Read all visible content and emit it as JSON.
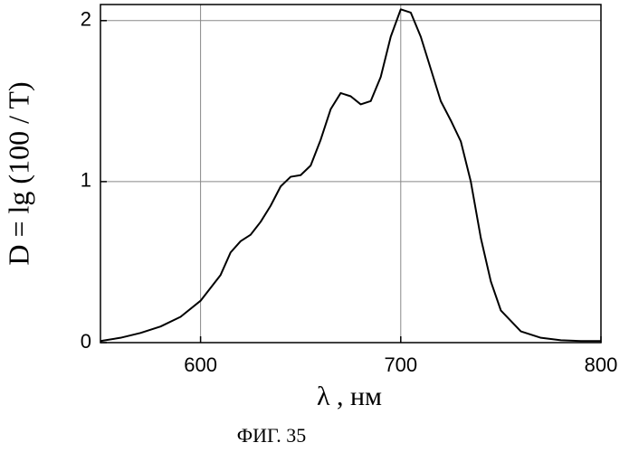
{
  "chart_data": {
    "type": "line",
    "title": "ФИГ. 35",
    "x_label": "λ , нм",
    "y_label": "D = lg (100 / T)",
    "x": [
      550,
      560,
      570,
      580,
      590,
      600,
      610,
      615,
      620,
      625,
      630,
      635,
      640,
      645,
      650,
      655,
      660,
      665,
      670,
      675,
      680,
      685,
      690,
      695,
      700,
      705,
      710,
      715,
      720,
      725,
      730,
      735,
      740,
      745,
      750,
      760,
      770,
      780,
      790,
      800
    ],
    "values": [
      0.01,
      0.03,
      0.06,
      0.1,
      0.16,
      0.26,
      0.42,
      0.56,
      0.63,
      0.67,
      0.75,
      0.85,
      0.97,
      1.03,
      1.04,
      1.1,
      1.26,
      1.45,
      1.55,
      1.53,
      1.48,
      1.5,
      1.65,
      1.9,
      2.07,
      2.05,
      1.9,
      1.7,
      1.5,
      1.38,
      1.25,
      1.0,
      0.65,
      0.38,
      0.2,
      0.07,
      0.03,
      0.015,
      0.01,
      0.01
    ],
    "color": "#000000",
    "xlim": [
      550,
      800
    ],
    "xticks": [
      600,
      700,
      800
    ],
    "ylim": [
      0,
      2.1
    ],
    "yticks": [
      0,
      1,
      2
    ],
    "grid": true
  }
}
